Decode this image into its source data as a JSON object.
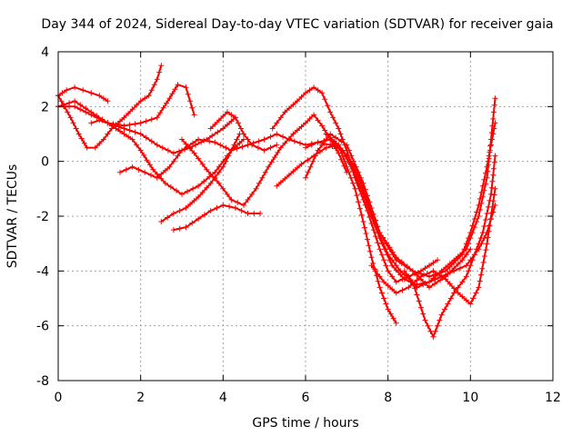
{
  "chart_data": {
    "type": "scatter",
    "title": "Day 344 of 2024, Sidereal Day-to-day VTEC variation (SDTVAR) for receiver gaia",
    "xlabel": "GPS time / hours",
    "ylabel": "SDTVAR / TECUs",
    "xlim": [
      0,
      12
    ],
    "ylim": [
      -8,
      4
    ],
    "xticks": [
      0,
      2,
      4,
      6,
      8,
      10,
      12
    ],
    "yticks": [
      -8,
      -6,
      -4,
      -2,
      0,
      2,
      4
    ],
    "xtick_labels": [
      "0",
      "2",
      "4",
      "6",
      "8",
      "10",
      "12"
    ],
    "ytick_labels": [
      "-8",
      "-6",
      "-4",
      "-2",
      "0",
      "2",
      "4"
    ],
    "grid": true,
    "marker": "+",
    "color": "#ff0000",
    "series": [
      {
        "name": "s1",
        "x": [
          0.0,
          0.2,
          0.4,
          0.6,
          0.8,
          1.0,
          1.2
        ],
        "y": [
          2.4,
          2.6,
          2.7,
          2.6,
          2.5,
          2.4,
          2.2
        ]
      },
      {
        "name": "s2",
        "x": [
          0.0,
          0.3,
          0.5,
          0.7,
          0.9,
          1.1,
          1.3,
          1.6,
          1.8,
          2.0,
          2.2,
          2.4,
          2.5
        ],
        "y": [
          2.4,
          1.6,
          1.0,
          0.5,
          0.5,
          0.8,
          1.2,
          1.6,
          1.9,
          2.2,
          2.4,
          3.0,
          3.5
        ]
      },
      {
        "name": "s3",
        "x": [
          0.0,
          0.4,
          0.8,
          1.2,
          1.6,
          2.0,
          2.4,
          2.7,
          2.9,
          3.1,
          3.3
        ],
        "y": [
          2.0,
          2.0,
          1.7,
          1.4,
          1.3,
          1.4,
          1.6,
          2.3,
          2.8,
          2.7,
          1.7
        ]
      },
      {
        "name": "s4",
        "x": [
          0.0,
          0.4,
          0.8,
          1.2,
          1.6,
          2.0,
          2.4,
          2.8,
          3.2,
          3.6,
          4.0,
          4.3
        ],
        "y": [
          2.0,
          2.2,
          1.8,
          1.4,
          1.2,
          1.0,
          0.6,
          0.3,
          0.5,
          0.8,
          1.2,
          1.6
        ]
      },
      {
        "name": "s5",
        "x": [
          0.8,
          1.0,
          1.2,
          1.4,
          1.6,
          1.8,
          2.0,
          2.3,
          2.6,
          3.0,
          3.4,
          3.8,
          4.2,
          4.5
        ],
        "y": [
          1.4,
          1.5,
          1.4,
          1.2,
          1.0,
          0.8,
          0.4,
          -0.3,
          -0.8,
          -1.2,
          -0.9,
          -0.4,
          0.4,
          0.8
        ]
      },
      {
        "name": "s6",
        "x": [
          1.5,
          1.8,
          2.1,
          2.4,
          2.7,
          3.0,
          3.4,
          3.8,
          4.2,
          4.6,
          5.0
        ],
        "y": [
          -0.4,
          -0.2,
          -0.4,
          -0.6,
          -0.2,
          0.4,
          0.8,
          0.7,
          0.4,
          0.6,
          0.8
        ]
      },
      {
        "name": "s7",
        "x": [
          2.8,
          3.1,
          3.4,
          3.7,
          4.0,
          4.3,
          4.6,
          4.9
        ],
        "y": [
          -2.5,
          -2.4,
          -2.1,
          -1.8,
          -1.6,
          -1.7,
          -1.9,
          -1.9
        ]
      },
      {
        "name": "s8",
        "x": [
          3.0,
          3.3,
          3.6,
          3.9,
          4.2,
          4.5,
          4.8,
          5.1,
          5.4,
          5.7,
          6.0,
          6.2,
          6.4,
          6.6,
          6.8,
          7.0
        ],
        "y": [
          0.8,
          0.3,
          -0.3,
          -0.8,
          -1.4,
          -1.6,
          -1.0,
          -0.2,
          0.5,
          1.0,
          1.4,
          1.7,
          1.3,
          0.8,
          0.3,
          -0.4
        ]
      },
      {
        "name": "s9",
        "x": [
          2.5,
          2.8,
          3.1,
          3.4,
          3.7,
          4.0,
          4.2,
          4.4
        ],
        "y": [
          -2.2,
          -1.9,
          -1.7,
          -1.3,
          -0.8,
          -0.2,
          0.4,
          1.0
        ]
      },
      {
        "name": "s10",
        "x": [
          3.7,
          3.9,
          4.1,
          4.3,
          4.5,
          4.7,
          5.0,
          5.3
        ],
        "y": [
          1.2,
          1.5,
          1.8,
          1.6,
          1.0,
          0.6,
          0.4,
          0.6
        ]
      },
      {
        "name": "s11",
        "x": [
          5.3,
          5.6,
          5.9,
          6.2,
          6.5,
          6.8,
          7.0,
          7.2,
          7.4,
          7.6,
          7.8,
          8.0,
          8.2
        ],
        "y": [
          -0.9,
          -0.5,
          -0.1,
          0.2,
          0.5,
          0.6,
          -0.2,
          -1.0,
          -2.2,
          -3.5,
          -4.6,
          -5.4,
          -5.9
        ]
      },
      {
        "name": "s12",
        "x": [
          5.2,
          5.5,
          5.8,
          6.0,
          6.2,
          6.4,
          6.6,
          6.8,
          7.0,
          7.2,
          7.5,
          7.8,
          8.0,
          8.2,
          8.5,
          8.8,
          9.0,
          9.2
        ],
        "y": [
          1.2,
          1.8,
          2.2,
          2.5,
          2.7,
          2.5,
          1.8,
          1.2,
          0.4,
          -0.6,
          -1.8,
          -3.2,
          -4.0,
          -4.4,
          -4.2,
          -4.0,
          -3.8,
          -3.6
        ]
      },
      {
        "name": "s13",
        "x": [
          5.0,
          5.3,
          5.6,
          6.0,
          6.3,
          6.6,
          6.9,
          7.2,
          7.5,
          7.8,
          8.2,
          8.6,
          9.0,
          9.4,
          9.8,
          10.0
        ],
        "y": [
          0.8,
          1.0,
          0.8,
          0.6,
          0.7,
          0.8,
          0.4,
          -0.5,
          -1.5,
          -2.6,
          -3.5,
          -4.0,
          -4.6,
          -4.2,
          -3.6,
          -3.2
        ]
      },
      {
        "name": "s14",
        "x": [
          6.0,
          6.3,
          6.6,
          6.9,
          7.2,
          7.5,
          7.8,
          8.1,
          8.4,
          8.7,
          9.0,
          9.3,
          9.6,
          9.9,
          10.2,
          10.4,
          10.6
        ],
        "y": [
          0.5,
          0.7,
          0.6,
          0.4,
          -0.2,
          -1.4,
          -2.8,
          -3.8,
          -4.3,
          -4.5,
          -4.4,
          -4.2,
          -4.0,
          -3.8,
          -3.2,
          -2.6,
          -1.6
        ]
      },
      {
        "name": "s15",
        "x": [
          6.5,
          6.8,
          7.1,
          7.4,
          7.7,
          8.0,
          8.3,
          8.6,
          8.9,
          9.1,
          9.3,
          9.6,
          9.9,
          10.1,
          10.3,
          10.5,
          10.6
        ],
        "y": [
          1.0,
          0.6,
          0.0,
          -1.2,
          -2.4,
          -3.4,
          -4.0,
          -4.4,
          -5.8,
          -6.4,
          -5.6,
          -4.8,
          -4.2,
          -3.4,
          -2.6,
          -1.2,
          0.2
        ]
      },
      {
        "name": "s16",
        "x": [
          7.6,
          7.9,
          8.2,
          8.5,
          8.8,
          9.1,
          9.4,
          9.7,
          10.0,
          10.2,
          10.4,
          10.6
        ],
        "y": [
          -3.8,
          -4.4,
          -4.8,
          -4.6,
          -4.2,
          -4.0,
          -4.3,
          -4.8,
          -5.2,
          -4.6,
          -3.0,
          -1.0
        ]
      },
      {
        "name": "s17",
        "x": [
          6.0,
          6.3,
          6.6,
          7.0,
          7.4,
          7.8,
          8.2,
          8.6,
          9.0,
          9.4,
          9.8,
          10.0,
          10.2,
          10.4,
          10.5,
          10.6
        ],
        "y": [
          -0.6,
          0.4,
          1.0,
          0.6,
          -0.8,
          -2.6,
          -3.6,
          -4.0,
          -4.2,
          -4.0,
          -3.4,
          -2.6,
          -1.6,
          -0.2,
          0.6,
          1.4
        ]
      },
      {
        "name": "s18",
        "x": [
          8.4,
          8.7,
          9.0,
          9.3,
          9.6,
          9.9,
          10.2,
          10.4,
          10.5,
          10.6
        ],
        "y": [
          -4.0,
          -4.6,
          -4.4,
          -4.0,
          -3.6,
          -3.2,
          -2.0,
          -0.6,
          0.8,
          2.3
        ]
      }
    ]
  }
}
